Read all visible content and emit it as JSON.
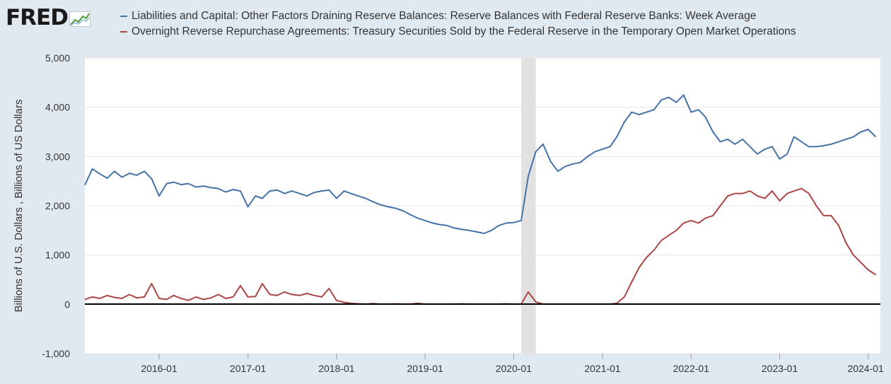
{
  "brand": {
    "name": "FRED"
  },
  "colors": {
    "background": "#e1e9f0",
    "plot_background": "#ffffff",
    "series_1": "#4572a7",
    "series_2": "#aa4643",
    "recession": "#e1e1e1",
    "zero_line": "#000000"
  },
  "chart_data": {
    "type": "line",
    "ylabel": "Billions of U.S. Dollars , Billions of US Dollars",
    "xlabel": "",
    "ylim": [
      -1000,
      5000
    ],
    "xlim": [
      "2015-03",
      "2024-02"
    ],
    "y_ticks": [
      "5,000",
      "4,000",
      "3,000",
      "2,000",
      "1,000",
      "0",
      "-1,000"
    ],
    "x_ticks": [
      "2016-01",
      "2017-01",
      "2018-01",
      "2019-01",
      "2020-01",
      "2021-01",
      "2022-01",
      "2023-01",
      "2024-01"
    ],
    "grid": true,
    "legend_position": "top",
    "recession_shading": [
      {
        "start": "2020-02",
        "end": "2020-04"
      }
    ],
    "series": [
      {
        "name": "Liabilities and Capital: Other Factors Draining Reserve Balances: Reserve Balances with Federal Reserve Banks: Week Average",
        "color": "#4572a7",
        "points": [
          [
            "2015-03",
            2420
          ],
          [
            "2015-04",
            2750
          ],
          [
            "2015-05",
            2650
          ],
          [
            "2015-06",
            2560
          ],
          [
            "2015-07",
            2700
          ],
          [
            "2015-08",
            2580
          ],
          [
            "2015-09",
            2660
          ],
          [
            "2015-10",
            2620
          ],
          [
            "2015-11",
            2700
          ],
          [
            "2015-12",
            2550
          ],
          [
            "2016-01",
            2200
          ],
          [
            "2016-02",
            2450
          ],
          [
            "2016-03",
            2480
          ],
          [
            "2016-04",
            2430
          ],
          [
            "2016-05",
            2450
          ],
          [
            "2016-06",
            2380
          ],
          [
            "2016-07",
            2400
          ],
          [
            "2016-08",
            2370
          ],
          [
            "2016-09",
            2350
          ],
          [
            "2016-10",
            2280
          ],
          [
            "2016-11",
            2330
          ],
          [
            "2016-12",
            2300
          ],
          [
            "2017-01",
            1980
          ],
          [
            "2017-02",
            2200
          ],
          [
            "2017-03",
            2150
          ],
          [
            "2017-04",
            2300
          ],
          [
            "2017-05",
            2320
          ],
          [
            "2017-06",
            2250
          ],
          [
            "2017-07",
            2300
          ],
          [
            "2017-08",
            2250
          ],
          [
            "2017-09",
            2200
          ],
          [
            "2017-10",
            2270
          ],
          [
            "2017-11",
            2300
          ],
          [
            "2017-12",
            2320
          ],
          [
            "2018-01",
            2150
          ],
          [
            "2018-02",
            2300
          ],
          [
            "2018-03",
            2250
          ],
          [
            "2018-04",
            2200
          ],
          [
            "2018-05",
            2150
          ],
          [
            "2018-06",
            2080
          ],
          [
            "2018-07",
            2020
          ],
          [
            "2018-08",
            1980
          ],
          [
            "2018-09",
            1950
          ],
          [
            "2018-10",
            1900
          ],
          [
            "2018-11",
            1820
          ],
          [
            "2018-12",
            1750
          ],
          [
            "2019-01",
            1700
          ],
          [
            "2019-02",
            1650
          ],
          [
            "2019-03",
            1620
          ],
          [
            "2019-04",
            1600
          ],
          [
            "2019-05",
            1550
          ],
          [
            "2019-06",
            1520
          ],
          [
            "2019-07",
            1500
          ],
          [
            "2019-08",
            1470
          ],
          [
            "2019-09",
            1440
          ],
          [
            "2019-10",
            1500
          ],
          [
            "2019-11",
            1600
          ],
          [
            "2019-12",
            1650
          ],
          [
            "2020-01",
            1660
          ],
          [
            "2020-02",
            1700
          ],
          [
            "2020-03",
            2600
          ],
          [
            "2020-04",
            3100
          ],
          [
            "2020-05",
            3250
          ],
          [
            "2020-06",
            2900
          ],
          [
            "2020-07",
            2700
          ],
          [
            "2020-08",
            2800
          ],
          [
            "2020-09",
            2850
          ],
          [
            "2020-10",
            2880
          ],
          [
            "2020-11",
            3000
          ],
          [
            "2020-12",
            3100
          ],
          [
            "2021-01",
            3150
          ],
          [
            "2021-02",
            3200
          ],
          [
            "2021-03",
            3400
          ],
          [
            "2021-04",
            3700
          ],
          [
            "2021-05",
            3900
          ],
          [
            "2021-06",
            3850
          ],
          [
            "2021-07",
            3900
          ],
          [
            "2021-08",
            3950
          ],
          [
            "2021-09",
            4150
          ],
          [
            "2021-10",
            4200
          ],
          [
            "2021-11",
            4100
          ],
          [
            "2021-12",
            4250
          ],
          [
            "2022-01",
            3900
          ],
          [
            "2022-02",
            3950
          ],
          [
            "2022-03",
            3800
          ],
          [
            "2022-04",
            3500
          ],
          [
            "2022-05",
            3300
          ],
          [
            "2022-06",
            3350
          ],
          [
            "2022-07",
            3250
          ],
          [
            "2022-08",
            3350
          ],
          [
            "2022-09",
            3200
          ],
          [
            "2022-10",
            3050
          ],
          [
            "2022-11",
            3150
          ],
          [
            "2022-12",
            3200
          ],
          [
            "2023-01",
            2950
          ],
          [
            "2023-02",
            3050
          ],
          [
            "2023-03",
            3400
          ],
          [
            "2023-04",
            3300
          ],
          [
            "2023-05",
            3200
          ],
          [
            "2023-06",
            3200
          ],
          [
            "2023-07",
            3220
          ],
          [
            "2023-08",
            3250
          ],
          [
            "2023-09",
            3300
          ],
          [
            "2023-10",
            3350
          ],
          [
            "2023-11",
            3400
          ],
          [
            "2023-12",
            3500
          ],
          [
            "2024-01",
            3550
          ],
          [
            "2024-02",
            3400
          ]
        ]
      },
      {
        "name": "Overnight Reverse Repurchase Agreements: Treasury Securities Sold by the Federal Reserve in the Temporary Open Market Operations",
        "color": "#aa4643",
        "points": [
          [
            "2015-03",
            100
          ],
          [
            "2015-04",
            150
          ],
          [
            "2015-05",
            120
          ],
          [
            "2015-06",
            180
          ],
          [
            "2015-07",
            140
          ],
          [
            "2015-08",
            120
          ],
          [
            "2015-09",
            200
          ],
          [
            "2015-10",
            130
          ],
          [
            "2015-11",
            150
          ],
          [
            "2015-12",
            420
          ],
          [
            "2016-01",
            120
          ],
          [
            "2016-02",
            100
          ],
          [
            "2016-03",
            180
          ],
          [
            "2016-04",
            120
          ],
          [
            "2016-05",
            80
          ],
          [
            "2016-06",
            150
          ],
          [
            "2016-07",
            100
          ],
          [
            "2016-08",
            130
          ],
          [
            "2016-09",
            200
          ],
          [
            "2016-10",
            120
          ],
          [
            "2016-11",
            150
          ],
          [
            "2016-12",
            380
          ],
          [
            "2017-01",
            150
          ],
          [
            "2017-02",
            160
          ],
          [
            "2017-03",
            420
          ],
          [
            "2017-04",
            200
          ],
          [
            "2017-05",
            180
          ],
          [
            "2017-06",
            250
          ],
          [
            "2017-07",
            200
          ],
          [
            "2017-08",
            180
          ],
          [
            "2017-09",
            220
          ],
          [
            "2017-10",
            180
          ],
          [
            "2017-11",
            150
          ],
          [
            "2017-12",
            320
          ],
          [
            "2018-01",
            80
          ],
          [
            "2018-02",
            40
          ],
          [
            "2018-03",
            20
          ],
          [
            "2018-04",
            10
          ],
          [
            "2018-05",
            5
          ],
          [
            "2018-06",
            15
          ],
          [
            "2018-07",
            5
          ],
          [
            "2018-08",
            5
          ],
          [
            "2018-09",
            10
          ],
          [
            "2018-10",
            5
          ],
          [
            "2018-11",
            5
          ],
          [
            "2018-12",
            20
          ],
          [
            "2019-01",
            5
          ],
          [
            "2019-02",
            5
          ],
          [
            "2019-03",
            5
          ],
          [
            "2019-04",
            5
          ],
          [
            "2019-05",
            5
          ],
          [
            "2019-06",
            10
          ],
          [
            "2019-07",
            5
          ],
          [
            "2019-08",
            5
          ],
          [
            "2019-09",
            5
          ],
          [
            "2019-10",
            5
          ],
          [
            "2019-11",
            5
          ],
          [
            "2019-12",
            10
          ],
          [
            "2020-01",
            5
          ],
          [
            "2020-02",
            5
          ],
          [
            "2020-03",
            250
          ],
          [
            "2020-04",
            50
          ],
          [
            "2020-05",
            5
          ],
          [
            "2020-06",
            5
          ],
          [
            "2020-07",
            5
          ],
          [
            "2020-08",
            5
          ],
          [
            "2020-09",
            5
          ],
          [
            "2020-10",
            5
          ],
          [
            "2020-11",
            5
          ],
          [
            "2020-12",
            5
          ],
          [
            "2021-01",
            5
          ],
          [
            "2021-02",
            5
          ],
          [
            "2021-03",
            20
          ],
          [
            "2021-04",
            150
          ],
          [
            "2021-05",
            450
          ],
          [
            "2021-06",
            750
          ],
          [
            "2021-07",
            950
          ],
          [
            "2021-08",
            1100
          ],
          [
            "2021-09",
            1300
          ],
          [
            "2021-10",
            1400
          ],
          [
            "2021-11",
            1500
          ],
          [
            "2021-12",
            1650
          ],
          [
            "2022-01",
            1700
          ],
          [
            "2022-02",
            1650
          ],
          [
            "2022-03",
            1750
          ],
          [
            "2022-04",
            1800
          ],
          [
            "2022-05",
            2000
          ],
          [
            "2022-06",
            2200
          ],
          [
            "2022-07",
            2250
          ],
          [
            "2022-08",
            2250
          ],
          [
            "2022-09",
            2300
          ],
          [
            "2022-10",
            2200
          ],
          [
            "2022-11",
            2150
          ],
          [
            "2022-12",
            2300
          ],
          [
            "2023-01",
            2100
          ],
          [
            "2023-02",
            2250
          ],
          [
            "2023-03",
            2300
          ],
          [
            "2023-04",
            2350
          ],
          [
            "2023-05",
            2250
          ],
          [
            "2023-06",
            2000
          ],
          [
            "2023-07",
            1800
          ],
          [
            "2023-08",
            1800
          ],
          [
            "2023-09",
            1600
          ],
          [
            "2023-10",
            1250
          ],
          [
            "2023-11",
            1000
          ],
          [
            "2023-12",
            850
          ],
          [
            "2024-01",
            700
          ],
          [
            "2024-02",
            600
          ]
        ]
      }
    ]
  }
}
